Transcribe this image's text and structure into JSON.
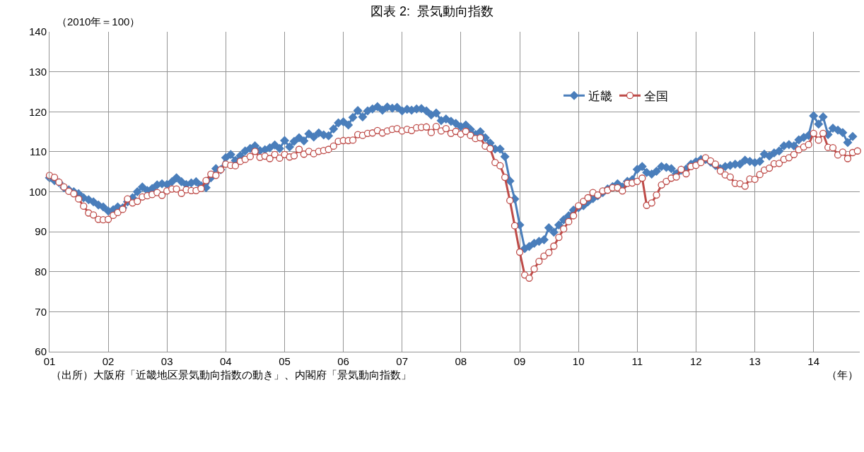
{
  "chart_data": {
    "type": "line",
    "title": "図表 2:  景気動向指数",
    "annotations": [
      "（2010年＝100）",
      "（出所）大阪府「近畿地区景気動向指数の動き」、内閣府「景気動向指数」",
      "（年）"
    ],
    "x": [
      "2001-01",
      "2001-02",
      "2001-03",
      "2001-04",
      "2001-05",
      "2001-06",
      "2001-07",
      "2001-08",
      "2001-09",
      "2001-10",
      "2001-11",
      "2001-12",
      "2002-01",
      "2002-02",
      "2002-03",
      "2002-04",
      "2002-05",
      "2002-06",
      "2002-07",
      "2002-08",
      "2002-09",
      "2002-10",
      "2002-11",
      "2002-12",
      "2003-01",
      "2003-02",
      "2003-03",
      "2003-04",
      "2003-05",
      "2003-06",
      "2003-07",
      "2003-08",
      "2003-09",
      "2003-10",
      "2003-11",
      "2003-12",
      "2004-01",
      "2004-02",
      "2004-03",
      "2004-04",
      "2004-05",
      "2004-06",
      "2004-07",
      "2004-08",
      "2004-09",
      "2004-10",
      "2004-11",
      "2004-12",
      "2005-01",
      "2005-02",
      "2005-03",
      "2005-04",
      "2005-05",
      "2005-06",
      "2005-07",
      "2005-08",
      "2005-09",
      "2005-10",
      "2005-11",
      "2005-12",
      "2006-01",
      "2006-02",
      "2006-03",
      "2006-04",
      "2006-05",
      "2006-06",
      "2006-07",
      "2006-08",
      "2006-09",
      "2006-10",
      "2006-11",
      "2006-12",
      "2007-01",
      "2007-02",
      "2007-03",
      "2007-04",
      "2007-05",
      "2007-06",
      "2007-07",
      "2007-08",
      "2007-09",
      "2007-10",
      "2007-11",
      "2007-12",
      "2008-01",
      "2008-02",
      "2008-03",
      "2008-04",
      "2008-05",
      "2008-06",
      "2008-07",
      "2008-08",
      "2008-09",
      "2008-10",
      "2008-11",
      "2008-12",
      "2009-01",
      "2009-02",
      "2009-03",
      "2009-04",
      "2009-05",
      "2009-06",
      "2009-07",
      "2009-08",
      "2009-09",
      "2009-10",
      "2009-11",
      "2009-12",
      "2010-01",
      "2010-02",
      "2010-03",
      "2010-04",
      "2010-05",
      "2010-06",
      "2010-07",
      "2010-08",
      "2010-09",
      "2010-10",
      "2010-11",
      "2010-12",
      "2011-01",
      "2011-02",
      "2011-03",
      "2011-04",
      "2011-05",
      "2011-06",
      "2011-07",
      "2011-08",
      "2011-09",
      "2011-10",
      "2011-11",
      "2011-12",
      "2012-01",
      "2012-02",
      "2012-03",
      "2012-04",
      "2012-05",
      "2012-06",
      "2012-07",
      "2012-08",
      "2012-09",
      "2012-10",
      "2012-11",
      "2012-12",
      "2013-01",
      "2013-02",
      "2013-03",
      "2013-04",
      "2013-05",
      "2013-06",
      "2013-07",
      "2013-08",
      "2013-09",
      "2013-10",
      "2013-11",
      "2013-12",
      "2014-01",
      "2014-02",
      "2014-03",
      "2014-04",
      "2014-05",
      "2014-06",
      "2014-07",
      "2014-08",
      "2014-09",
      "2014-10"
    ],
    "series": [
      {
        "name": "近畿",
        "color": "#4a7ebb",
        "marker": "diamond",
        "values": [
          103.5,
          102.8,
          102.3,
          101.0,
          100.5,
          100.0,
          99.5,
          98.5,
          98.0,
          97.5,
          96.7,
          96.2,
          95.2,
          95.5,
          96.2,
          96.0,
          97.5,
          98.5,
          100.0,
          101.2,
          100.3,
          100.8,
          101.7,
          102.0,
          101.8,
          102.5,
          103.5,
          102.5,
          101.8,
          102.2,
          102.5,
          101.5,
          101.0,
          103.5,
          105.8,
          105.5,
          108.5,
          109.3,
          107.8,
          109.0,
          110.2,
          110.8,
          111.5,
          110.3,
          110.5,
          111.0,
          111.7,
          110.8,
          112.8,
          111.2,
          112.6,
          113.5,
          112.7,
          114.5,
          113.7,
          114.7,
          114.2,
          114.0,
          115.7,
          117.2,
          117.5,
          116.7,
          118.6,
          120.3,
          118.7,
          120.2,
          120.7,
          121.3,
          120.4,
          121.2,
          120.9,
          121.1,
          120.2,
          120.6,
          120.4,
          120.7,
          120.8,
          120.2,
          119.2,
          119.7,
          117.8,
          118.2,
          117.6,
          117.1,
          116.3,
          116.7,
          115.6,
          114.3,
          115.0,
          113.5,
          112.2,
          110.7,
          110.7,
          108.8,
          102.7,
          98.2,
          91.7,
          85.8,
          86.3,
          87.1,
          87.6,
          88.0,
          91.0,
          89.9,
          91.7,
          93.0,
          94.0,
          95.4,
          96.0,
          96.5,
          97.5,
          98.3,
          99.0,
          99.8,
          100.7,
          101.3,
          102.0,
          101.2,
          102.6,
          103.0,
          105.6,
          106.3,
          104.8,
          104.4,
          105.1,
          106.3,
          106.1,
          105.8,
          104.5,
          105.4,
          105.7,
          106.9,
          107.5,
          108.1,
          108.1,
          107.4,
          106.6,
          105.8,
          106.3,
          106.6,
          106.9,
          106.9,
          107.9,
          107.6,
          107.3,
          107.6,
          109.4,
          108.9,
          109.7,
          110.2,
          111.5,
          111.8,
          111.5,
          113.0,
          113.6,
          114.1,
          119.0,
          116.9,
          118.7,
          114.3,
          115.9,
          115.4,
          114.8,
          112.3,
          113.8,
          null
        ]
      },
      {
        "name": "全国",
        "color": "#be4b48",
        "marker": "circle",
        "values": [
          104.1,
          103.6,
          102.4,
          101.2,
          100.1,
          99.5,
          98.2,
          96.4,
          94.7,
          94.2,
          93.1,
          93.0,
          93.1,
          94.1,
          94.8,
          95.6,
          98.2,
          97.2,
          97.6,
          98.7,
          99.0,
          99.3,
          99.8,
          99.1,
          100.2,
          100.7,
          100.7,
          99.6,
          100.5,
          100.3,
          100.3,
          100.8,
          102.8,
          104.4,
          104.1,
          105.5,
          106.9,
          106.6,
          106.5,
          107.6,
          108.1,
          108.8,
          110.1,
          108.6,
          108.9,
          108.3,
          109.3,
          108.4,
          109.3,
          108.7,
          109.0,
          110.6,
          109.4,
          110.1,
          109.5,
          110.1,
          110.3,
          110.6,
          111.4,
          112.6,
          112.8,
          112.8,
          112.9,
          114.3,
          114.1,
          114.6,
          114.7,
          115.3,
          114.7,
          115.2,
          115.6,
          115.8,
          115.2,
          115.6,
          115.3,
          116.0,
          116.1,
          116.2,
          114.8,
          116.3,
          115.2,
          115.8,
          114.6,
          115.1,
          114.4,
          115.1,
          114.1,
          113.3,
          113.5,
          111.4,
          110.8,
          107.3,
          106.5,
          103.6,
          97.8,
          91.5,
          84.9,
          79.2,
          78.4,
          80.7,
          82.6,
          83.9,
          84.8,
          86.4,
          88.6,
          90.7,
          92.5,
          94.0,
          96.5,
          97.6,
          98.5,
          99.8,
          99.2,
          100.2,
          100.4,
          101.0,
          101.0,
          100.2,
          102.1,
          102.2,
          102.6,
          103.4,
          96.6,
          97.2,
          99.2,
          101.7,
          102.6,
          103.4,
          103.7,
          105.6,
          104.5,
          106.3,
          106.6,
          107.3,
          108.5,
          107.7,
          106.9,
          105.2,
          104.2,
          103.7,
          102.1,
          102.0,
          101.4,
          103.2,
          103.1,
          104.3,
          105.4,
          105.9,
          107.0,
          107.1,
          108.1,
          108.5,
          109.3,
          110.5,
          111.2,
          111.8,
          114.6,
          112.9,
          114.6,
          111.1,
          111.0,
          109.2,
          109.9,
          108.3,
          109.8,
          110.2
        ]
      }
    ],
    "xlim": [
      "2001-01-01",
      "2014-10-15"
    ],
    "xticks": [
      {
        "value": "2001-01",
        "label": "01"
      },
      {
        "value": "2002-01",
        "label": "02"
      },
      {
        "value": "2003-01",
        "label": "03"
      },
      {
        "value": "2004-01",
        "label": "04"
      },
      {
        "value": "2005-01",
        "label": "05"
      },
      {
        "value": "2006-01",
        "label": "06"
      },
      {
        "value": "2007-01",
        "label": "07"
      },
      {
        "value": "2008-01",
        "label": "08"
      },
      {
        "value": "2009-01",
        "label": "09"
      },
      {
        "value": "2010-01",
        "label": "10"
      },
      {
        "value": "2011-01",
        "label": "11"
      },
      {
        "value": "2012-01",
        "label": "12"
      },
      {
        "value": "2013-01",
        "label": "13"
      },
      {
        "value": "2014-01",
        "label": "14"
      }
    ],
    "ylim": [
      60,
      140
    ],
    "yticks": [
      60,
      70,
      80,
      90,
      100,
      110,
      120,
      130,
      140
    ],
    "grid": true,
    "legend": "top right",
    "line_style": "solid"
  }
}
